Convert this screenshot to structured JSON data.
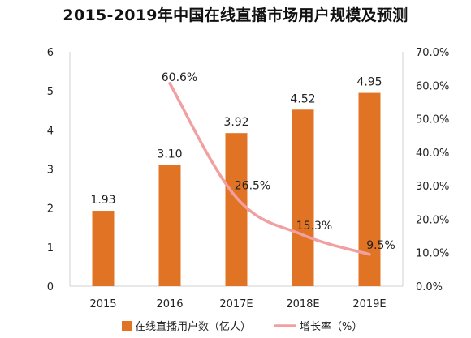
{
  "chart_data": {
    "type": "bar",
    "title": "2015-2019年中国在线直播市场用户规模及预测",
    "categories": [
      "2015",
      "2016",
      "2017E",
      "2018E",
      "2019E"
    ],
    "series": [
      {
        "name": "在线直播用户数（亿人）",
        "type": "bar",
        "axis": "left",
        "values": [
          1.93,
          3.1,
          3.92,
          4.52,
          4.95
        ],
        "labels": [
          "1.93",
          "3.10",
          "3.92",
          "4.52",
          "4.95"
        ]
      },
      {
        "name": "增长率（%）",
        "type": "line",
        "axis": "right",
        "values": [
          null,
          60.6,
          26.5,
          15.3,
          9.5
        ],
        "labels": [
          "",
          "60.6%",
          "26.5%",
          "15.3%",
          "9.5%"
        ]
      }
    ],
    "ylim": [
      0,
      6
    ],
    "y_ticks": [
      "0",
      "1",
      "2",
      "3",
      "4",
      "5",
      "6"
    ],
    "y2lim": [
      0,
      70
    ],
    "y2_ticks": [
      "0.0%",
      "10.0%",
      "20.0%",
      "30.0%",
      "40.0%",
      "50.0%",
      "60.0%",
      "70.0%"
    ],
    "grid": false,
    "legend_position": "bottom",
    "colors": {
      "bar": "#E07424",
      "line": "#F0A0A0",
      "axis": "#d0d0d0"
    }
  }
}
